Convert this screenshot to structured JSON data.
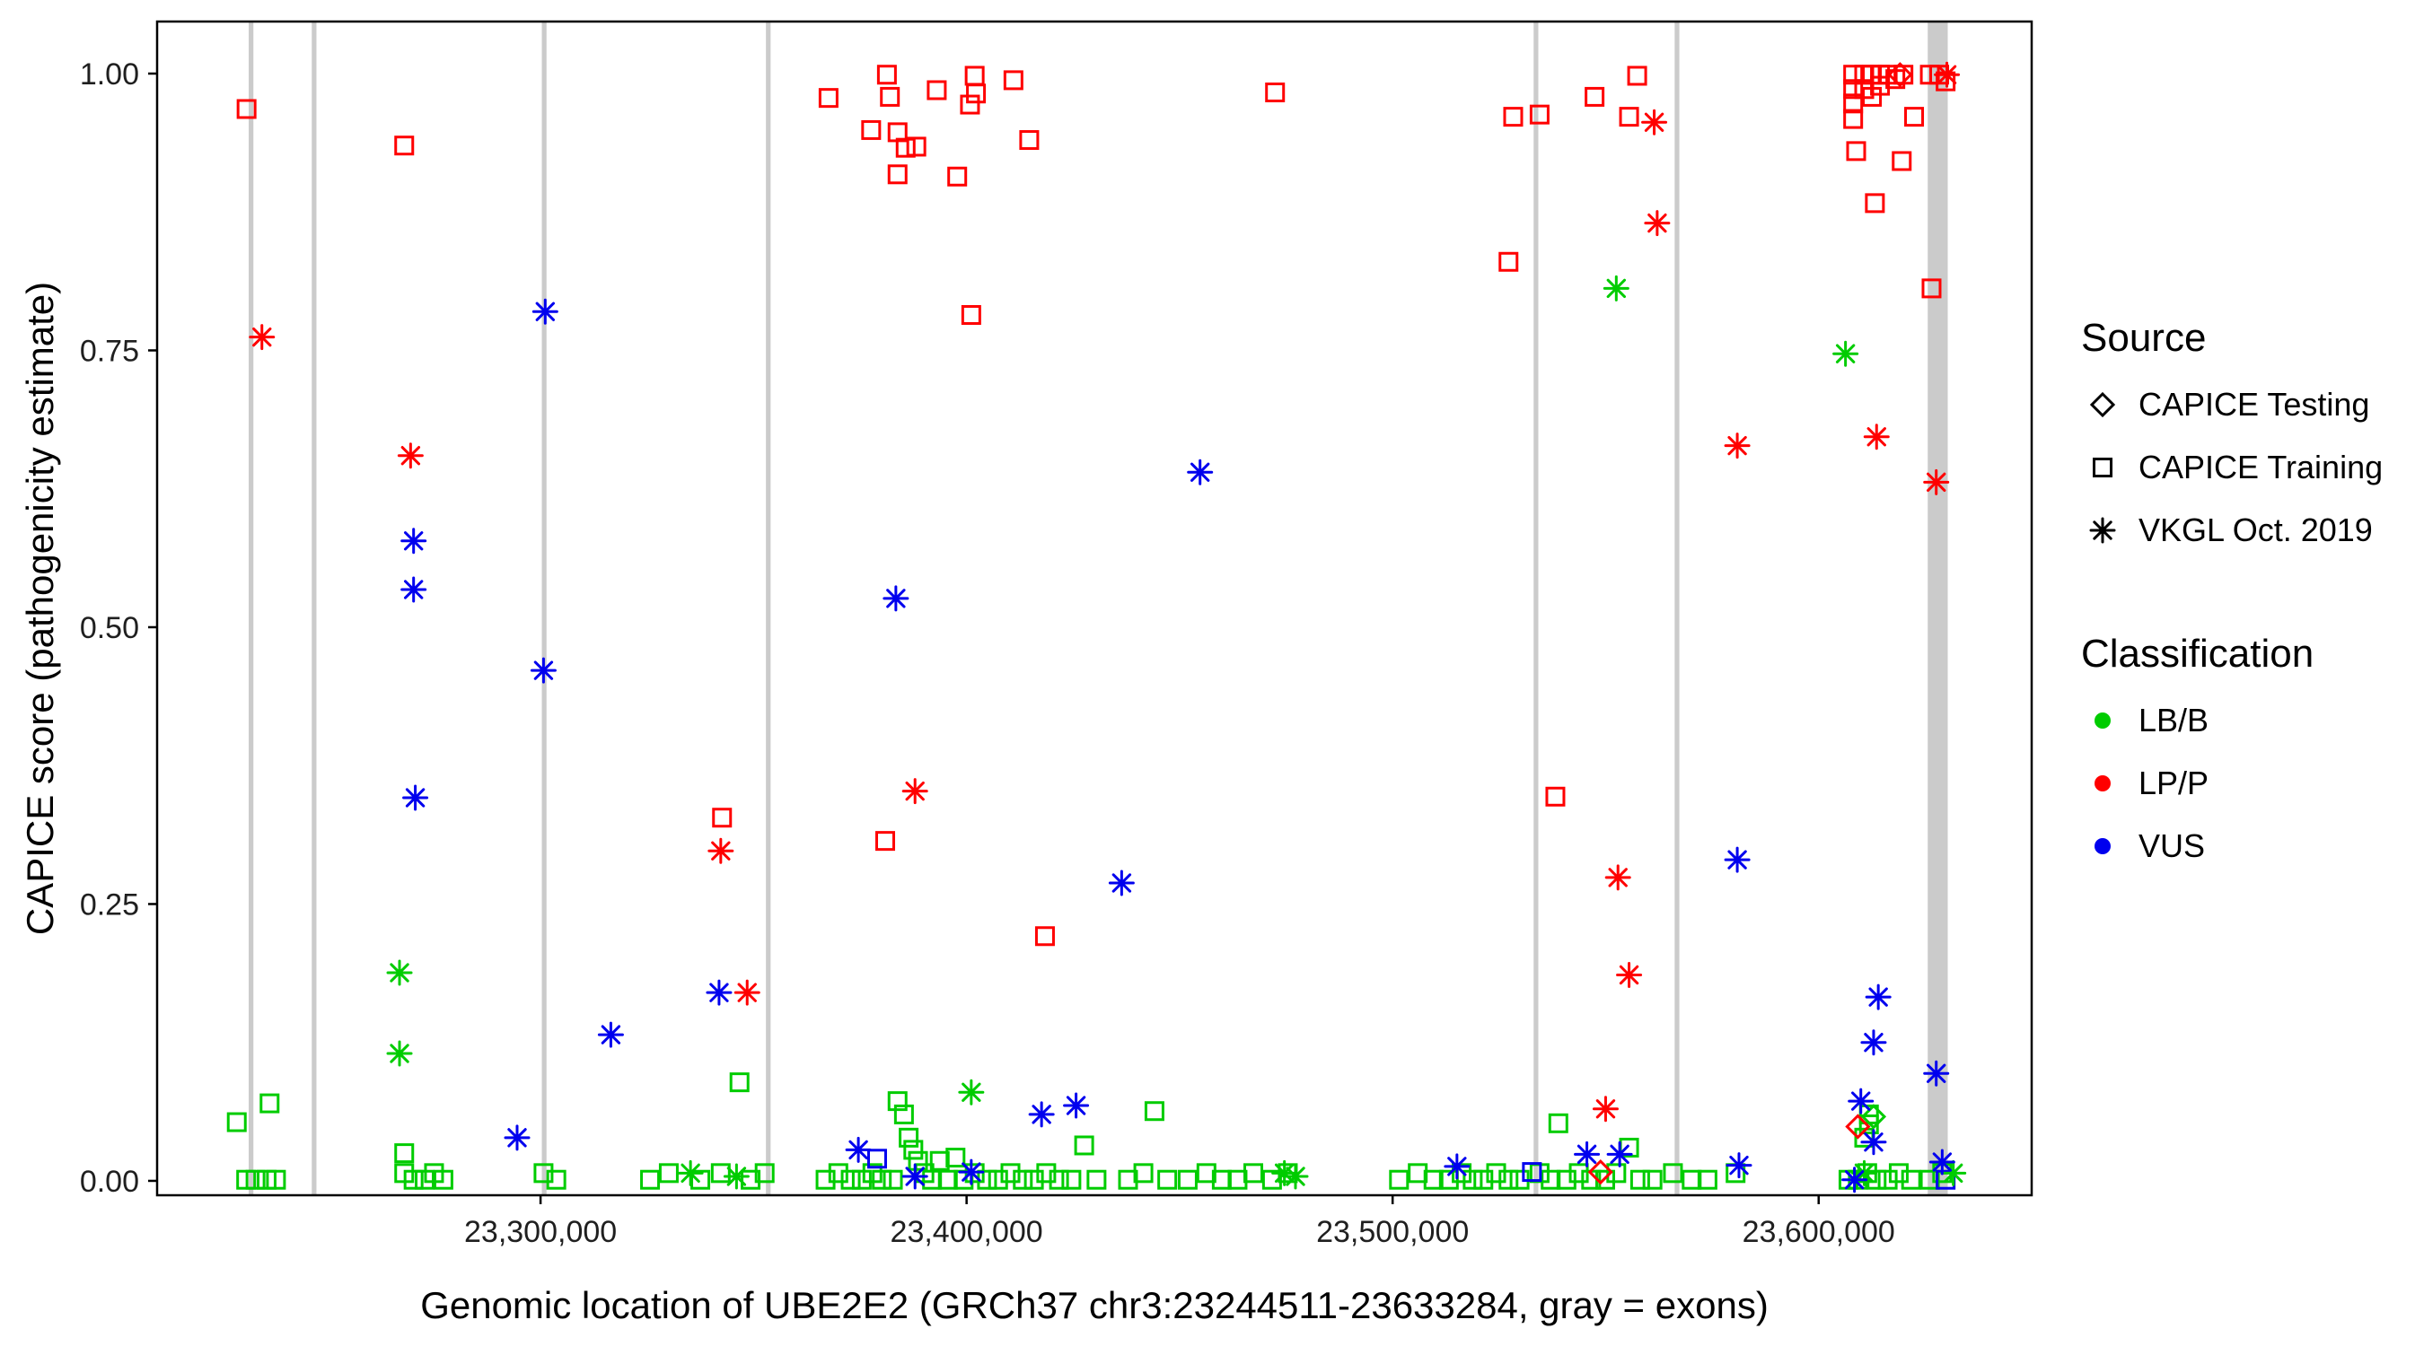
{
  "chart_data": {
    "type": "scatter",
    "title": "",
    "xlabel": "Genomic location of UBE2E2 (GRCh37 chr3:23244511-23633284, gray = exons)",
    "ylabel": "CAPICE score (pathogenicity estimate)",
    "xlim": [
      23210000,
      23650000
    ],
    "ylim": [
      -0.013,
      1.047
    ],
    "grid": "off",
    "panel_border_color": "#000000",
    "tick_color": "#000000",
    "exon_color": "#CBCBCB",
    "x_ticks": [
      {
        "value": 23300000,
        "label": "23,300,000"
      },
      {
        "value": 23400000,
        "label": "23,400,000"
      },
      {
        "value": 23500000,
        "label": "23,500,000"
      },
      {
        "value": 23600000,
        "label": "23,600,000"
      }
    ],
    "y_ticks": [
      {
        "value": 0.0,
        "label": "0.00"
      },
      {
        "value": 0.25,
        "label": "0.25"
      },
      {
        "value": 0.5,
        "label": "0.50"
      },
      {
        "value": 0.75,
        "label": "0.75"
      },
      {
        "value": 1.0,
        "label": "1.00"
      }
    ],
    "exons": [
      [
        23231500,
        23232600
      ],
      [
        23246300,
        23247400
      ],
      [
        23300300,
        23301400
      ],
      [
        23352900,
        23354000
      ],
      [
        23533100,
        23534200
      ],
      [
        23566200,
        23567300
      ],
      [
        23625600,
        23630300
      ]
    ],
    "series": [
      {
        "id": "training-lbb",
        "source": "CAPICE Training",
        "classification": "LB/B",
        "shape": "square",
        "color": "#00CC00",
        "points": [
          [
            23228700,
            0.053
          ],
          [
            23236400,
            0.07
          ],
          [
            23230900,
            0.001
          ],
          [
            23233100,
            0.001
          ],
          [
            23235700,
            0.001
          ],
          [
            23237900,
            0.001
          ],
          [
            23268000,
            0.025
          ],
          [
            23268000,
            0.007
          ],
          [
            23270200,
            0.001
          ],
          [
            23272800,
            0.001
          ],
          [
            23275000,
            0.007
          ],
          [
            23277200,
            0.001
          ],
          [
            23300700,
            0.007
          ],
          [
            23303700,
            0.001
          ],
          [
            23325700,
            0.001
          ],
          [
            23330100,
            0.007
          ],
          [
            23337500,
            0.001
          ],
          [
            23342300,
            0.007
          ],
          [
            23346700,
            0.089
          ],
          [
            23349300,
            0.001
          ],
          [
            23352600,
            0.007
          ],
          [
            23366900,
            0.001
          ],
          [
            23369900,
            0.007
          ],
          [
            23372800,
            0.001
          ],
          [
            23375400,
            0.001
          ],
          [
            23377900,
            0.007
          ],
          [
            23380100,
            0.001
          ],
          [
            23382700,
            0.001
          ],
          [
            23383800,
            0.072
          ],
          [
            23385300,
            0.06
          ],
          [
            23386400,
            0.039
          ],
          [
            23387500,
            0.028
          ],
          [
            23388600,
            0.018
          ],
          [
            23390100,
            0.007
          ],
          [
            23391900,
            0.001
          ],
          [
            23393700,
            0.018
          ],
          [
            23395600,
            0.001
          ],
          [
            23397400,
            0.021
          ],
          [
            23399300,
            0.001
          ],
          [
            23401900,
            0.007
          ],
          [
            23404800,
            0.001
          ],
          [
            23407400,
            0.001
          ],
          [
            23410300,
            0.007
          ],
          [
            23413200,
            0.001
          ],
          [
            23415800,
            0.001
          ],
          [
            23418700,
            0.007
          ],
          [
            23421700,
            0.001
          ],
          [
            23424600,
            0.001
          ],
          [
            23427600,
            0.032
          ],
          [
            23430500,
            0.001
          ],
          [
            23444100,
            0.063
          ],
          [
            23437900,
            0.001
          ],
          [
            23441500,
            0.007
          ],
          [
            23447100,
            0.001
          ],
          [
            23451900,
            0.001
          ],
          [
            23456300,
            0.007
          ],
          [
            23459900,
            0.001
          ],
          [
            23463600,
            0.001
          ],
          [
            23467300,
            0.007
          ],
          [
            23471700,
            0.001
          ],
          [
            23475400,
            0.007
          ],
          [
            23501500,
            0.001
          ],
          [
            23505900,
            0.007
          ],
          [
            23509600,
            0.001
          ],
          [
            23513200,
            0.001
          ],
          [
            23516200,
            0.007
          ],
          [
            23518800,
            0.001
          ],
          [
            23521300,
            0.001
          ],
          [
            23524300,
            0.007
          ],
          [
            23527200,
            0.001
          ],
          [
            23529800,
            0.001
          ],
          [
            23534500,
            0.007
          ],
          [
            23537100,
            0.001
          ],
          [
            23538900,
            0.052
          ],
          [
            23540800,
            0.001
          ],
          [
            23543700,
            0.007
          ],
          [
            23546600,
            0.001
          ],
          [
            23549900,
            0.001
          ],
          [
            23552500,
            0.007
          ],
          [
            23555500,
            0.03
          ],
          [
            23558100,
            0.001
          ],
          [
            23561000,
            0.001
          ],
          [
            23565800,
            0.007
          ],
          [
            23570200,
            0.001
          ],
          [
            23573900,
            0.001
          ],
          [
            23580500,
            0.007
          ],
          [
            23607000,
            0.001
          ],
          [
            23609200,
            0.001
          ],
          [
            23611400,
            0.007
          ],
          [
            23611800,
            0.06
          ],
          [
            23611800,
            0.051
          ],
          [
            23610700,
            0.039
          ],
          [
            23613600,
            0.001
          ],
          [
            23616200,
            0.001
          ],
          [
            23618800,
            0.007
          ],
          [
            23621700,
            0.001
          ],
          [
            23626100,
            0.001
          ],
          [
            23629000,
            0.007
          ]
        ]
      },
      {
        "id": "training-lpp",
        "source": "CAPICE Training",
        "classification": "LP/P",
        "shape": "square",
        "color": "#FF0000",
        "points": [
          [
            23231000,
            0.968
          ],
          [
            23268000,
            0.935
          ],
          [
            23367600,
            0.978
          ],
          [
            23377600,
            0.949
          ],
          [
            23381300,
            0.999
          ],
          [
            23382000,
            0.979
          ],
          [
            23383800,
            0.947
          ],
          [
            23383800,
            0.909
          ],
          [
            23385700,
            0.933
          ],
          [
            23388200,
            0.934
          ],
          [
            23393000,
            0.985
          ],
          [
            23397800,
            0.907
          ],
          [
            23400800,
            0.972
          ],
          [
            23401900,
            0.998
          ],
          [
            23402200,
            0.982
          ],
          [
            23401100,
            0.782
          ],
          [
            23411000,
            0.994
          ],
          [
            23414700,
            0.94
          ],
          [
            23418400,
            0.221
          ],
          [
            23472400,
            0.983
          ],
          [
            23342600,
            0.328
          ],
          [
            23380900,
            0.307
          ],
          [
            23528300,
            0.961
          ],
          [
            23534500,
            0.963
          ],
          [
            23527200,
            0.83
          ],
          [
            23538200,
            0.347
          ],
          [
            23547400,
            0.979
          ],
          [
            23555500,
            0.961
          ],
          [
            23557400,
            0.998
          ],
          [
            23608100,
            0.999
          ],
          [
            23608100,
            0.986
          ],
          [
            23608100,
            0.973
          ],
          [
            23608100,
            0.959
          ],
          [
            23610700,
            0.999
          ],
          [
            23610700,
            0.986
          ],
          [
            23612500,
            0.999
          ],
          [
            23612500,
            0.979
          ],
          [
            23614400,
            0.999
          ],
          [
            23614400,
            0.989
          ],
          [
            23616200,
            0.999
          ],
          [
            23618000,
            0.995
          ],
          [
            23608800,
            0.93
          ],
          [
            23613200,
            0.883
          ],
          [
            23619500,
            0.921
          ],
          [
            23619900,
            0.999
          ],
          [
            23622400,
            0.961
          ],
          [
            23626100,
            0.999
          ],
          [
            23628300,
            0.999
          ],
          [
            23629800,
            0.993
          ],
          [
            23626500,
            0.806
          ]
        ]
      },
      {
        "id": "training-vus",
        "source": "CAPICE Training",
        "classification": "VUS",
        "shape": "square",
        "color": "#0000EE",
        "points": [
          [
            23379000,
            0.02
          ],
          [
            23532700,
            0.008
          ],
          [
            23629800,
            0.001
          ]
        ]
      },
      {
        "id": "testing-lpp",
        "source": "CAPICE Testing",
        "classification": "LP/P",
        "shape": "diamond",
        "color": "#FF0000",
        "points": [
          [
            23619100,
            0.999
          ],
          [
            23609200,
            0.049
          ],
          [
            23548800,
            0.008
          ]
        ]
      },
      {
        "id": "testing-lbb",
        "source": "CAPICE Testing",
        "classification": "LB/B",
        "shape": "diamond",
        "color": "#00CC00",
        "points": [
          [
            23612900,
            0.058
          ]
        ]
      },
      {
        "id": "vkgl-lbb",
        "source": "VKGL Oct. 2019",
        "classification": "LB/B",
        "shape": "asterisk",
        "color": "#00CC00",
        "points": [
          [
            23266900,
            0.188
          ],
          [
            23266900,
            0.115
          ],
          [
            23552500,
            0.806
          ],
          [
            23606300,
            0.747
          ],
          [
            23401100,
            0.08
          ],
          [
            23335200,
            0.007
          ],
          [
            23346000,
            0.004
          ],
          [
            23474600,
            0.007
          ],
          [
            23477200,
            0.004
          ],
          [
            23610700,
            0.007
          ],
          [
            23631600,
            0.007
          ]
        ]
      },
      {
        "id": "vkgl-lpp",
        "source": "VKGL Oct. 2019",
        "classification": "LP/P",
        "shape": "asterisk",
        "color": "#FF0000",
        "points": [
          [
            23234600,
            0.762
          ],
          [
            23269500,
            0.655
          ],
          [
            23348500,
            0.17
          ],
          [
            23342300,
            0.298
          ],
          [
            23387900,
            0.352
          ],
          [
            23561400,
            0.956
          ],
          [
            23562100,
            0.865
          ],
          [
            23552900,
            0.274
          ],
          [
            23555500,
            0.186
          ],
          [
            23550000,
            0.065
          ],
          [
            23580900,
            0.664
          ],
          [
            23613600,
            0.672
          ],
          [
            23627600,
            0.631
          ],
          [
            23630100,
            0.999
          ]
        ]
      },
      {
        "id": "vkgl-vus",
        "source": "VKGL Oct. 2019",
        "classification": "VUS",
        "shape": "asterisk",
        "color": "#0000EE",
        "points": [
          [
            23301100,
            0.785
          ],
          [
            23270200,
            0.578
          ],
          [
            23270200,
            0.534
          ],
          [
            23270600,
            0.346
          ],
          [
            23300700,
            0.461
          ],
          [
            23316500,
            0.132
          ],
          [
            23294500,
            0.039
          ],
          [
            23341900,
            0.17
          ],
          [
            23383400,
            0.526
          ],
          [
            23454800,
            0.64
          ],
          [
            23436400,
            0.269
          ],
          [
            23417600,
            0.06
          ],
          [
            23425700,
            0.068
          ],
          [
            23374600,
            0.028
          ],
          [
            23387900,
            0.004
          ],
          [
            23401100,
            0.008
          ],
          [
            23515100,
            0.013
          ],
          [
            23545600,
            0.024
          ],
          [
            23553300,
            0.024
          ],
          [
            23580900,
            0.29
          ],
          [
            23581300,
            0.014
          ],
          [
            23614000,
            0.166
          ],
          [
            23612900,
            0.125
          ],
          [
            23609900,
            0.072
          ],
          [
            23612900,
            0.035
          ],
          [
            23627600,
            0.097
          ],
          [
            23629000,
            0.017
          ],
          [
            23608400,
            0.001
          ]
        ]
      }
    ],
    "legend": {
      "source_title": "Source",
      "source_items": [
        {
          "label": "CAPICE Testing",
          "shape": "diamond",
          "color": "#000000"
        },
        {
          "label": "CAPICE Training",
          "shape": "square",
          "color": "#000000"
        },
        {
          "label": "VKGL Oct. 2019",
          "shape": "asterisk",
          "color": "#000000"
        }
      ],
      "classification_title": "Classification",
      "classification_items": [
        {
          "label": "LB/B",
          "shape": "dot",
          "color": "#00CC00"
        },
        {
          "label": "LP/P",
          "shape": "dot",
          "color": "#FF0000"
        },
        {
          "label": "VUS",
          "shape": "dot",
          "color": "#0000EE"
        }
      ]
    }
  }
}
